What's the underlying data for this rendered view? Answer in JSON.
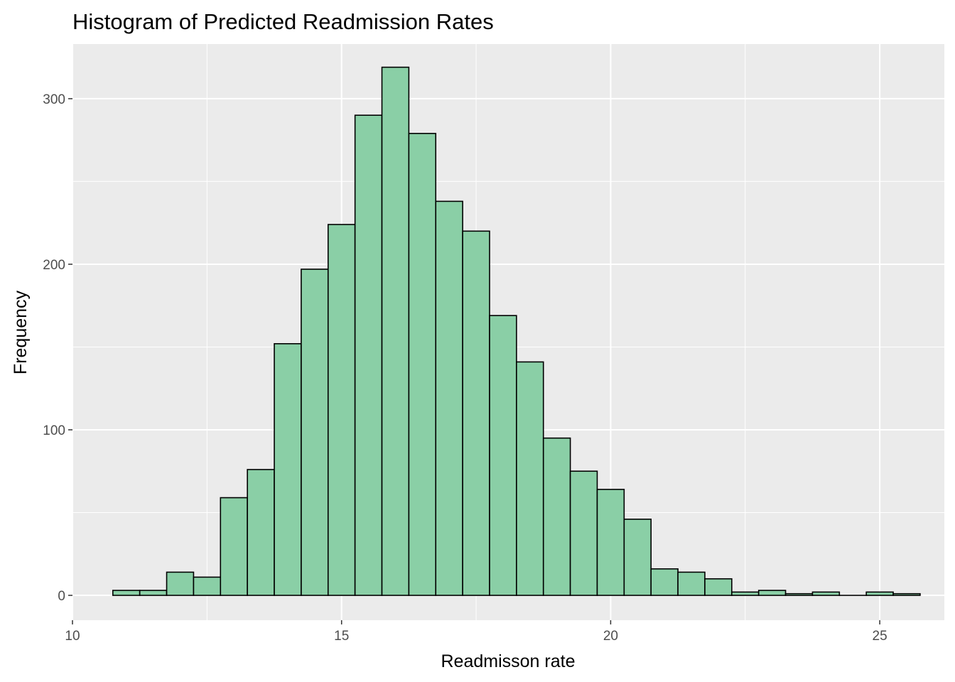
{
  "chart_data": {
    "type": "bar",
    "title": "Histogram of Predicted Readmission Rates",
    "xlabel": "Readmisson rate",
    "ylabel": "Frequency",
    "xlim": [
      10,
      26.2
    ],
    "ylim": [
      -15,
      333
    ],
    "x_ticks": [
      10,
      15,
      20,
      25
    ],
    "x_tick_labels": [
      "10",
      "15",
      "20",
      "25"
    ],
    "y_ticks": [
      0,
      100,
      200,
      300
    ],
    "y_tick_labels": [
      "0",
      "100",
      "200",
      "300"
    ],
    "grid": true,
    "bin_width": 0.5,
    "bins": [
      {
        "x_start": 10.75,
        "x_end": 11.25,
        "count": 3
      },
      {
        "x_start": 11.25,
        "x_end": 11.75,
        "count": 3
      },
      {
        "x_start": 11.75,
        "x_end": 12.25,
        "count": 14
      },
      {
        "x_start": 12.25,
        "x_end": 12.75,
        "count": 11
      },
      {
        "x_start": 12.75,
        "x_end": 13.25,
        "count": 59
      },
      {
        "x_start": 13.25,
        "x_end": 13.75,
        "count": 76
      },
      {
        "x_start": 13.75,
        "x_end": 14.25,
        "count": 152
      },
      {
        "x_start": 14.25,
        "x_end": 14.75,
        "count": 197
      },
      {
        "x_start": 14.75,
        "x_end": 15.25,
        "count": 224
      },
      {
        "x_start": 15.25,
        "x_end": 15.75,
        "count": 290
      },
      {
        "x_start": 15.75,
        "x_end": 16.25,
        "count": 319
      },
      {
        "x_start": 16.25,
        "x_end": 16.75,
        "count": 279
      },
      {
        "x_start": 16.75,
        "x_end": 17.25,
        "count": 238
      },
      {
        "x_start": 17.25,
        "x_end": 17.75,
        "count": 220
      },
      {
        "x_start": 17.75,
        "x_end": 18.25,
        "count": 169
      },
      {
        "x_start": 18.25,
        "x_end": 18.75,
        "count": 141
      },
      {
        "x_start": 18.75,
        "x_end": 19.25,
        "count": 95
      },
      {
        "x_start": 19.25,
        "x_end": 19.75,
        "count": 75
      },
      {
        "x_start": 19.75,
        "x_end": 20.25,
        "count": 64
      },
      {
        "x_start": 20.25,
        "x_end": 20.75,
        "count": 46
      },
      {
        "x_start": 20.75,
        "x_end": 21.25,
        "count": 16
      },
      {
        "x_start": 21.25,
        "x_end": 21.75,
        "count": 14
      },
      {
        "x_start": 21.75,
        "x_end": 22.25,
        "count": 10
      },
      {
        "x_start": 22.25,
        "x_end": 22.75,
        "count": 2
      },
      {
        "x_start": 22.75,
        "x_end": 23.25,
        "count": 3
      },
      {
        "x_start": 23.25,
        "x_end": 23.75,
        "count": 1
      },
      {
        "x_start": 23.75,
        "x_end": 24.25,
        "count": 2
      },
      {
        "x_start": 24.25,
        "x_end": 24.75,
        "count": 0
      },
      {
        "x_start": 24.75,
        "x_end": 25.25,
        "count": 2
      },
      {
        "x_start": 25.25,
        "x_end": 25.75,
        "count": 1
      }
    ],
    "colors": {
      "bar_fill": "#8ACFA6",
      "bar_stroke": "#000000",
      "panel_background": "#EBEBEB",
      "grid_major": "#FFFFFF",
      "tick_label": "#4D4D4D"
    }
  }
}
